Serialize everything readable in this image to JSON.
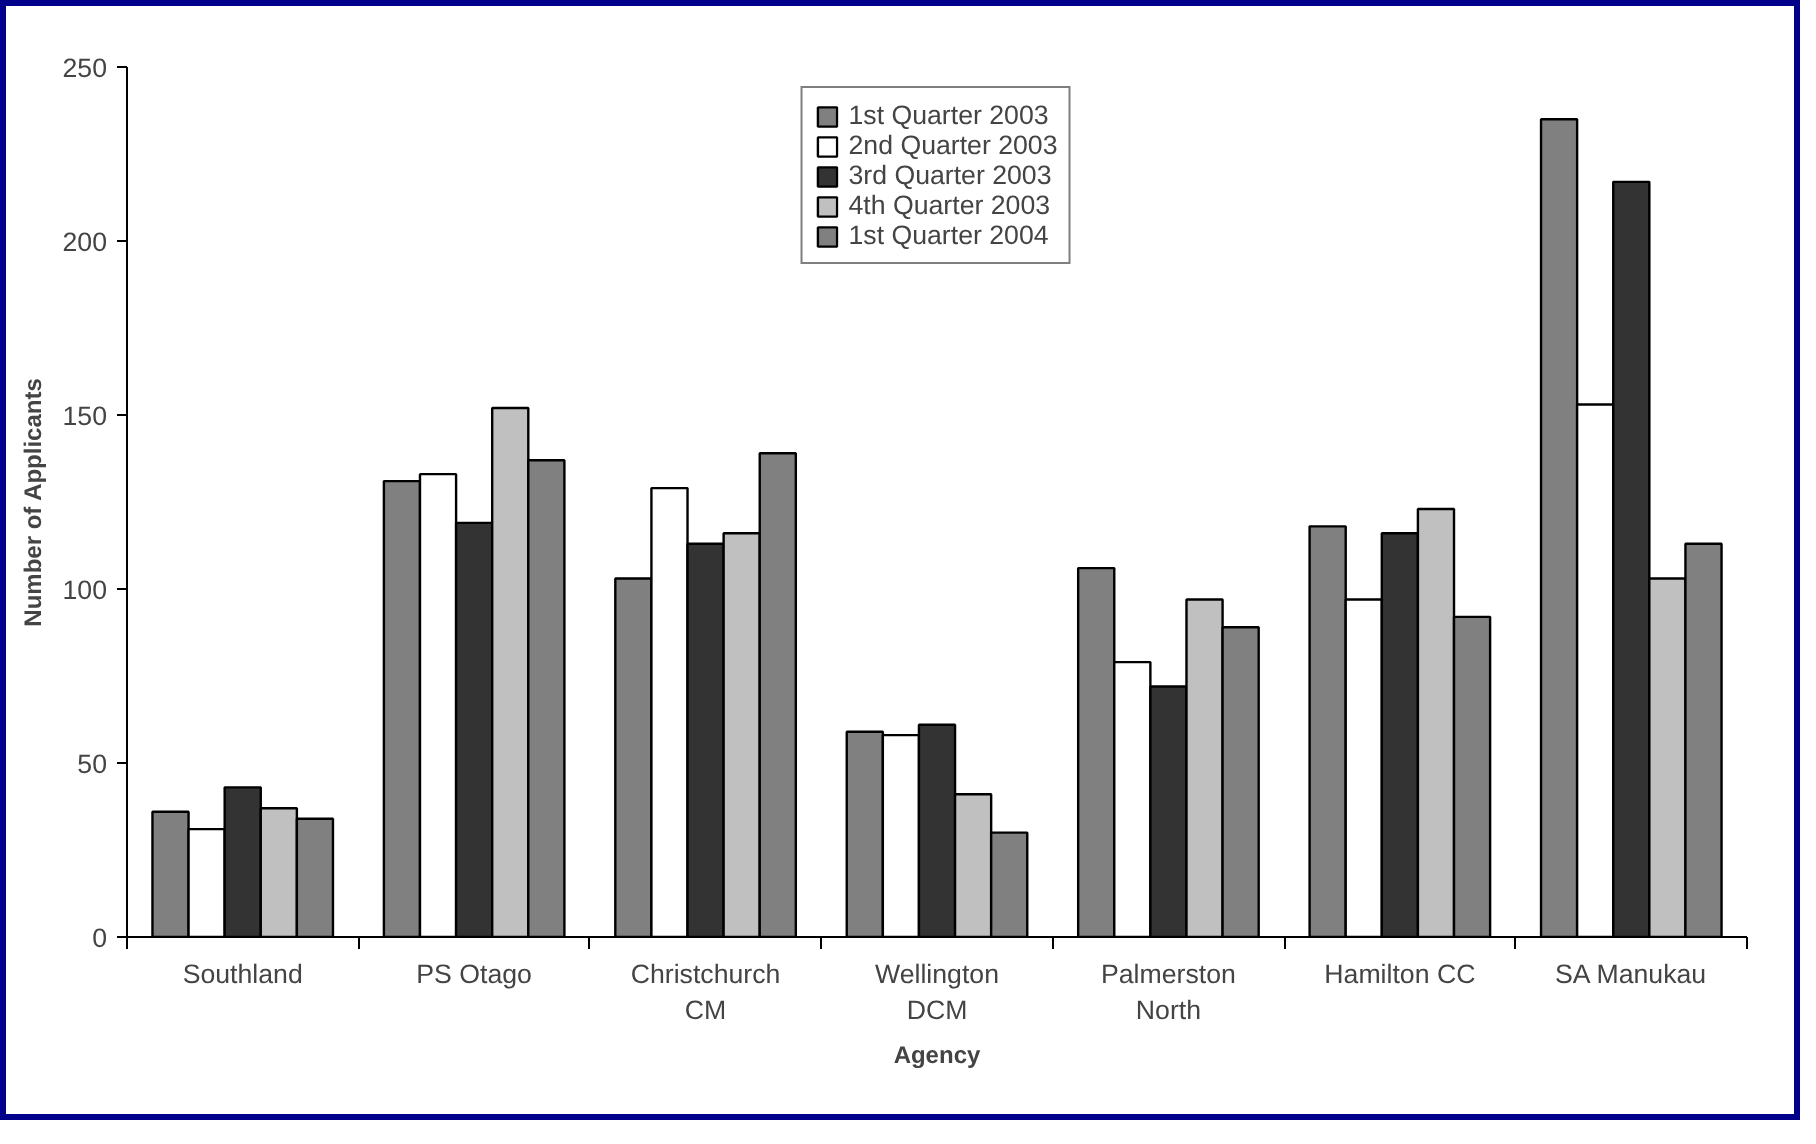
{
  "chart_data": {
    "type": "bar",
    "xlabel": "Agency",
    "ylabel": "Number of Applicants",
    "categories": [
      "Southland",
      "PS Otago",
      "Christchurch CM",
      "Wellington DCM",
      "Palmerston North",
      "Hamilton CC",
      "SA Manukau"
    ],
    "series": [
      {
        "name": "1st Quarter 2003",
        "color": "#808080",
        "values": [
          36,
          131,
          103,
          59,
          106,
          118,
          235
        ]
      },
      {
        "name": "2nd Quarter 2003",
        "color": "#ffffff",
        "values": [
          31,
          133,
          129,
          58,
          79,
          97,
          153
        ]
      },
      {
        "name": "3rd Quarter 2003",
        "color": "#333333",
        "values": [
          43,
          119,
          113,
          61,
          72,
          116,
          217
        ]
      },
      {
        "name": "4th Quarter 2003",
        "color": "#c0c0c0",
        "values": [
          37,
          152,
          116,
          41,
          97,
          123,
          103
        ]
      },
      {
        "name": "1st Quarter 2004",
        "color": "#808080",
        "values": [
          34,
          137,
          139,
          30,
          89,
          92,
          113
        ]
      }
    ],
    "ylim": [
      0,
      250
    ],
    "yticks": [
      0,
      50,
      100,
      150,
      200,
      250
    ],
    "grid": false,
    "legend": "top"
  }
}
